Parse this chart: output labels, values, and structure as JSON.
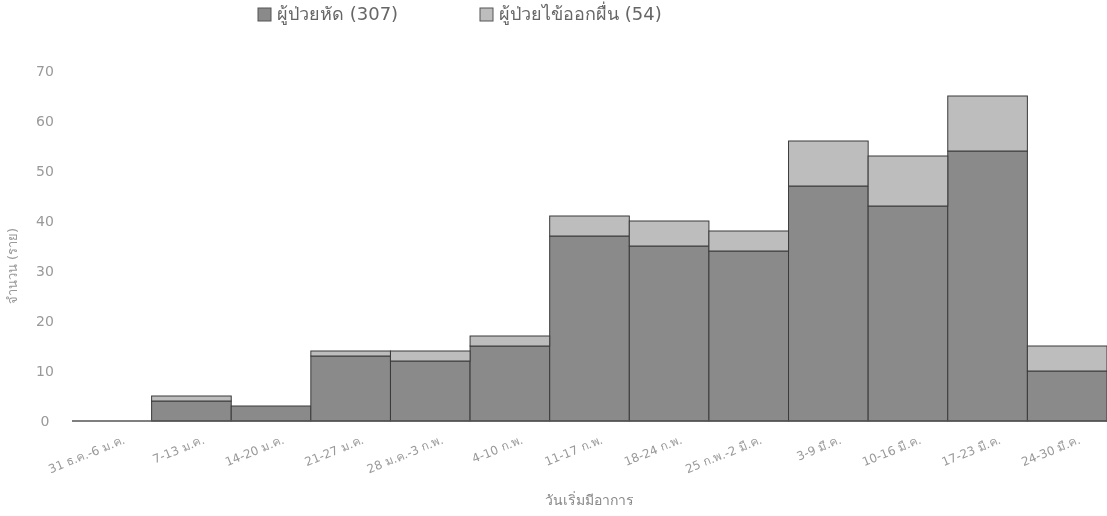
{
  "chart_data": {
    "type": "bar",
    "stacked": true,
    "xlabel": "วันเริ่มมีอาการ",
    "ylabel": "จำนวน (ราย)",
    "categories": [
      "31 ธ.ค.-6 ม.ค.",
      "7-13 ม.ค.",
      "14-20 ม.ค.",
      "21-27 ม.ค.",
      "28 ม.ค.-3 ก.พ.",
      "4-10 ก.พ.",
      "11-17 ก.พ.",
      "18-24 ก.พ.",
      "25 ก.พ.-2 มี.ค.",
      "3-9 มี.ค.",
      "10-16 มี.ค.",
      "17-23 มี.ค.",
      "24-30 มี.ค."
    ],
    "series": [
      {
        "name": "ผู้ป่วยหัด (307)",
        "color": "#8a8a8a",
        "values": [
          0,
          4,
          3,
          13,
          12,
          15,
          37,
          35,
          34,
          47,
          43,
          54,
          10
        ]
      },
      {
        "name": "ผู้ป่วยไข้ออกผื่น (54)",
        "color": "#bdbdbd",
        "values": [
          0,
          1,
          0,
          1,
          2,
          2,
          4,
          5,
          4,
          9,
          10,
          11,
          5
        ]
      }
    ],
    "ylim": [
      0,
      70
    ],
    "yticks": [
      0,
      10,
      20,
      30,
      40,
      50,
      60,
      70
    ],
    "grid": false,
    "legend": "top"
  }
}
